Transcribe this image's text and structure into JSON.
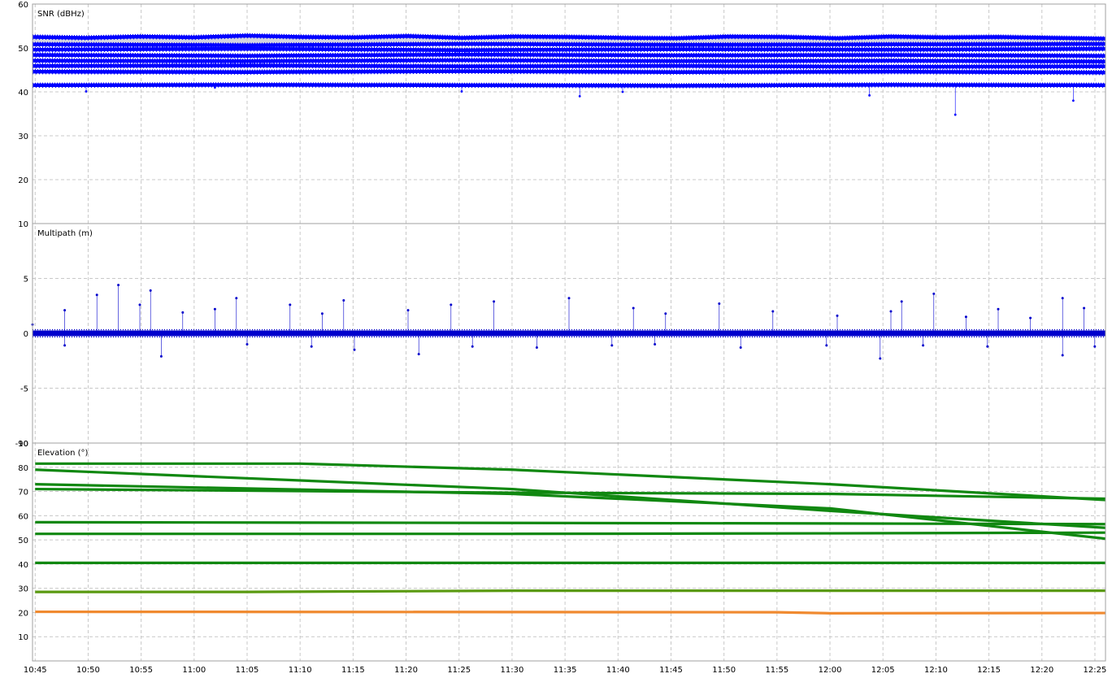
{
  "colors": {
    "snr": "#0000ff",
    "snr_fill": "#c8c8d8",
    "multipath": "#0000cc",
    "elevation_green": "#118811",
    "elevation_olive": "#5a9a10",
    "elevation_orange": "#f08a30",
    "grid": "#c8c8c8"
  },
  "chart_data": [
    {
      "type": "scatter",
      "title": "SNR (dBHz)",
      "ylim": [
        10,
        60
      ],
      "yticks": [
        10,
        20,
        30,
        40,
        50,
        60
      ],
      "grid": true,
      "series": [
        {
          "values": [
            [
              0,
              52.5
            ],
            [
              5,
              52.3
            ],
            [
              10,
              52.6
            ],
            [
              15,
              52.4
            ],
            [
              20,
              52.8
            ],
            [
              25,
              52.5
            ],
            [
              30,
              52.4
            ],
            [
              35,
              52.7
            ],
            [
              40,
              52.3
            ],
            [
              45,
              52.6
            ],
            [
              50,
              52.5
            ],
            [
              55,
              52.3
            ],
            [
              60,
              52.2
            ],
            [
              65,
              52.6
            ],
            [
              70,
              52.5
            ],
            [
              75,
              52.2
            ],
            [
              80,
              52.6
            ],
            [
              85,
              52.4
            ],
            [
              90,
              52.5
            ],
            [
              95,
              52.3
            ],
            [
              100,
              52.1
            ]
          ]
        },
        {
          "values": [
            [
              0,
              50.8
            ],
            [
              20,
              50.6
            ],
            [
              40,
              50.9
            ],
            [
              60,
              50.7
            ],
            [
              80,
              50.8
            ],
            [
              100,
              50.9
            ]
          ]
        },
        {
          "values": [
            [
              0,
              49.6
            ],
            [
              20,
              49.8
            ],
            [
              40,
              49.5
            ],
            [
              60,
              49.7
            ],
            [
              80,
              49.6
            ],
            [
              100,
              49.8
            ]
          ]
        },
        {
          "values": [
            [
              0,
              48.4
            ],
            [
              20,
              48.2
            ],
            [
              40,
              48.5
            ],
            [
              60,
              48.3
            ],
            [
              80,
              48.4
            ],
            [
              100,
              48.2
            ]
          ]
        },
        {
          "values": [
            [
              0,
              47.1
            ],
            [
              20,
              47.0
            ],
            [
              40,
              47.2
            ],
            [
              60,
              47.0
            ],
            [
              80,
              47.1
            ],
            [
              100,
              46.9
            ]
          ]
        },
        {
          "values": [
            [
              0,
              45.9
            ],
            [
              20,
              46.0
            ],
            [
              40,
              45.8
            ],
            [
              60,
              45.9
            ],
            [
              80,
              45.7
            ],
            [
              100,
              45.8
            ]
          ]
        },
        {
          "values": [
            [
              0,
              44.6
            ],
            [
              20,
              44.5
            ],
            [
              40,
              44.7
            ],
            [
              60,
              44.5
            ],
            [
              80,
              44.6
            ],
            [
              100,
              44.4
            ]
          ]
        },
        {
          "values": [
            [
              0,
              41.5
            ],
            [
              20,
              41.6
            ],
            [
              40,
              41.5
            ],
            [
              60,
              41.4
            ],
            [
              80,
              41.6
            ],
            [
              100,
              41.5
            ]
          ]
        },
        {
          "values": [
            [
              5,
              40.1
            ],
            [
              17,
              41.0
            ],
            [
              40,
              40.1
            ],
            [
              51,
              39.0
            ],
            [
              55,
              40.0
            ],
            [
              78,
              39.2
            ],
            [
              86,
              34.8
            ],
            [
              97,
              38.0
            ]
          ]
        }
      ]
    },
    {
      "type": "scatter",
      "title": "Multipath (m)",
      "ylim": [
        -10,
        10
      ],
      "yticks": [
        -10,
        -5,
        0,
        5
      ],
      "grid": true,
      "series": [
        {
          "values": [
            [
              0,
              0.8
            ],
            [
              3,
              2.1
            ],
            [
              6,
              3.5
            ],
            [
              8,
              4.4
            ],
            [
              10,
              2.6
            ],
            [
              11,
              3.9
            ],
            [
              14,
              1.9
            ],
            [
              17,
              2.2
            ],
            [
              19,
              3.2
            ],
            [
              24,
              2.6
            ],
            [
              27,
              1.8
            ],
            [
              29,
              3.0
            ],
            [
              35,
              2.1
            ],
            [
              39,
              2.6
            ],
            [
              43,
              2.9
            ],
            [
              50,
              3.2
            ],
            [
              56,
              2.3
            ],
            [
              59,
              1.8
            ],
            [
              64,
              2.7
            ],
            [
              69,
              2.0
            ],
            [
              75,
              1.6
            ],
            [
              80,
              2.0
            ],
            [
              81,
              2.9
            ],
            [
              84,
              3.6
            ],
            [
              87,
              1.5
            ],
            [
              90,
              2.2
            ],
            [
              93,
              1.4
            ],
            [
              96,
              3.2
            ],
            [
              98,
              2.3
            ],
            [
              3,
              -1.1
            ],
            [
              12,
              -2.1
            ],
            [
              20,
              -1.0
            ],
            [
              26,
              -1.2
            ],
            [
              30,
              -1.5
            ],
            [
              36,
              -1.9
            ],
            [
              41,
              -1.2
            ],
            [
              47,
              -1.3
            ],
            [
              54,
              -1.1
            ],
            [
              58,
              -1.0
            ],
            [
              66,
              -1.3
            ],
            [
              74,
              -1.1
            ],
            [
              79,
              -2.3
            ],
            [
              83,
              -1.1
            ],
            [
              89,
              -1.2
            ],
            [
              96,
              -2.0
            ],
            [
              99,
              -1.2
            ]
          ]
        }
      ]
    },
    {
      "type": "line",
      "title": "Elevation (°)",
      "ylim": [
        0,
        90
      ],
      "yticks": [
        10,
        20,
        30,
        40,
        50,
        60,
        70,
        80,
        90
      ],
      "grid": true,
      "x_ticks": [
        "10:45",
        "10:50",
        "10:55",
        "11:00",
        "11:05",
        "11:10",
        "11:15",
        "11:20",
        "11:25",
        "11:30",
        "11:35",
        "11:40",
        "11:45",
        "11:50",
        "11:55",
        "12:00",
        "12:05",
        "12:10",
        "12:15",
        "12:20",
        "12:25"
      ],
      "xlim": [
        "10:44:45",
        "12:26:00"
      ],
      "series": [
        {
          "color": "#118811",
          "values": [
            [
              "10:45",
              81.5
            ],
            [
              "11:10",
              81.5
            ],
            [
              "11:30",
              79
            ],
            [
              "12:00",
              73
            ],
            [
              "12:26",
              66.5
            ]
          ]
        },
        {
          "color": "#118811",
          "values": [
            [
              "10:45",
              79
            ],
            [
              "11:30",
              71
            ],
            [
              "12:00",
              62
            ],
            [
              "12:26",
              55
            ]
          ]
        },
        {
          "color": "#118811",
          "values": [
            [
              "10:45",
              73
            ],
            [
              "11:30",
              69
            ],
            [
              "12:00",
              63
            ],
            [
              "12:26",
              50.5
            ]
          ]
        },
        {
          "color": "#118811",
          "values": [
            [
              "10:45",
              71
            ],
            [
              "11:30",
              69.5
            ],
            [
              "12:00",
              69
            ],
            [
              "12:26",
              67
            ]
          ]
        },
        {
          "color": "#118811",
          "values": [
            [
              "10:45",
              57.3
            ],
            [
              "11:30",
              57
            ],
            [
              "12:00",
              56.8
            ],
            [
              "12:26",
              56.5
            ]
          ]
        },
        {
          "color": "#118811",
          "values": [
            [
              "10:45",
              52.5
            ],
            [
              "11:30",
              52.5
            ],
            [
              "12:00",
              52.7
            ],
            [
              "12:26",
              53
            ]
          ]
        },
        {
          "color": "#118811",
          "values": [
            [
              "10:45",
              40.5
            ],
            [
              "11:30",
              40.5
            ],
            [
              "12:00",
              40.5
            ],
            [
              "12:26",
              40.5
            ]
          ]
        },
        {
          "color": "#5a9a10",
          "values": [
            [
              "10:45",
              28.5
            ],
            [
              "11:05",
              28.5
            ],
            [
              "11:30",
              29
            ],
            [
              "12:00",
              29
            ],
            [
              "12:26",
              29
            ]
          ]
        },
        {
          "color": "#f08a30",
          "values": [
            [
              "10:45",
              20.3
            ],
            [
              "11:30",
              20.2
            ],
            [
              "11:55",
              20.1
            ],
            [
              "12:00",
              19.7
            ],
            [
              "12:26",
              19.8
            ]
          ]
        }
      ]
    }
  ]
}
